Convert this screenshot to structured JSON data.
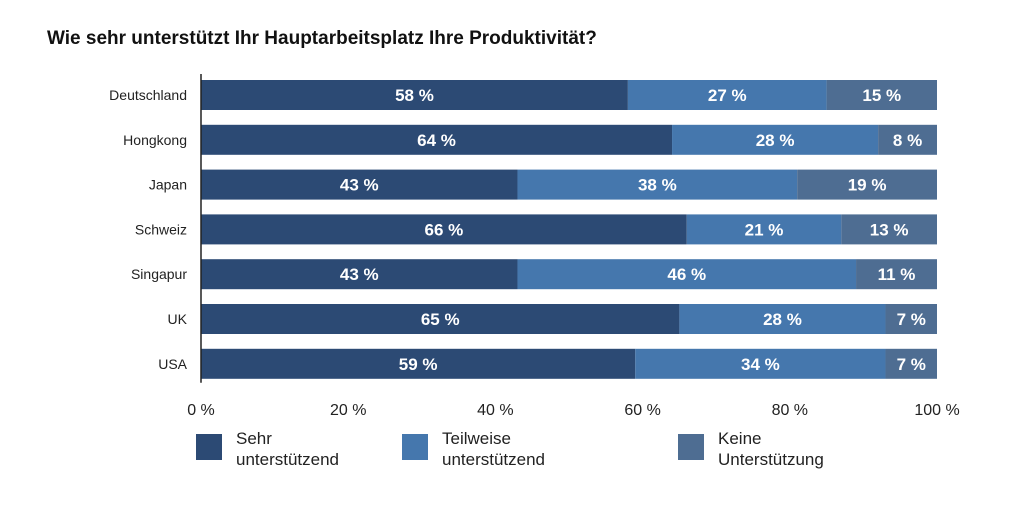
{
  "chart_data": {
    "type": "bar",
    "orientation": "horizontal",
    "stacked": true,
    "title": "Wie sehr unterstützt Ihr Hauptarbeitsplatz Ihre Produktivität?",
    "categories": [
      "Deutschland",
      "Hongkong",
      "Japan",
      "Schweiz",
      "Singapur",
      "UK",
      "USA"
    ],
    "series": [
      {
        "name": "Sehr unterstützend",
        "legend_lines": [
          "Sehr",
          "unterstützend"
        ],
        "color": "#2c4a74",
        "values": [
          58,
          64,
          43,
          66,
          43,
          65,
          59
        ]
      },
      {
        "name": "Teilweise unterstützend",
        "legend_lines": [
          "Teilweise",
          "unterstützend"
        ],
        "color": "#4577ad",
        "values": [
          27,
          28,
          38,
          21,
          46,
          28,
          34
        ]
      },
      {
        "name": "Keine Unterstützung",
        "legend_lines": [
          "Keine",
          "Unterstützung"
        ],
        "color": "#4e6d92",
        "values": [
          15,
          8,
          19,
          13,
          11,
          7,
          7
        ]
      }
    ],
    "value_suffix": " %",
    "xlim": [
      0,
      100
    ],
    "xticks": [
      0,
      20,
      40,
      60,
      80,
      100
    ],
    "xtick_labels": [
      "0 %",
      "20 %",
      "40 %",
      "60 %",
      "80 %",
      "100 %"
    ],
    "grid": false,
    "legend_position": "bottom"
  }
}
